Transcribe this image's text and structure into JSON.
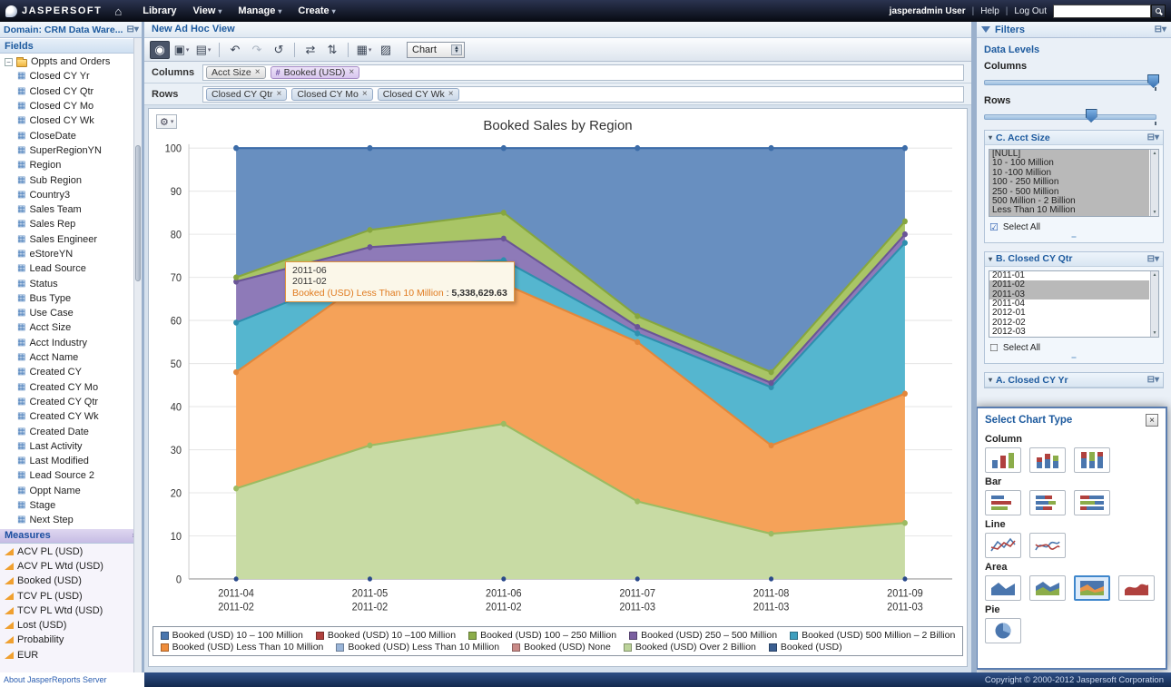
{
  "topbar": {
    "brand": "JASPERSOFT",
    "menus": [
      {
        "label": "Library",
        "caret": false
      },
      {
        "label": "View",
        "caret": true
      },
      {
        "label": "Manage",
        "caret": true
      },
      {
        "label": "Create",
        "caret": true
      }
    ],
    "user": "jasperadmin User",
    "help": "Help",
    "logout": "Log Out"
  },
  "left_panel": {
    "title": "Domain: CRM Data Ware...",
    "fields_header": "Fields",
    "root_folder": "Oppts and Orders",
    "fields": [
      "Closed CY Yr",
      "Closed CY Qtr",
      "Closed CY Mo",
      "Closed CY Wk",
      "CloseDate",
      "SuperRegionYN",
      "Region",
      "Sub Region",
      "Country3",
      "Sales Team",
      "Sales Rep",
      "Sales Engineer",
      "eStoreYN",
      "Lead Source",
      "Status",
      "Bus Type",
      "Use Case",
      "Acct Size",
      "Acct Industry",
      "Acct Name",
      "Created CY",
      "Created CY Mo",
      "Created CY Qtr",
      "Created CY Wk",
      "Created Date",
      "Last Activity",
      "Last Modified",
      "Lead Source 2",
      "Oppt Name",
      "Stage",
      "Next Step"
    ],
    "measures_header": "Measures",
    "measures": [
      "ACV PL (USD)",
      "ACV PL Wtd (USD)",
      "Booked (USD)",
      "TCV PL (USD)",
      "TCV PL Wtd (USD)",
      "Lost (USD)",
      "Probability",
      "EUR"
    ]
  },
  "main": {
    "view_title": "New Ad Hoc View",
    "columns_label": "Columns",
    "rows_label": "Rows",
    "column_pills": [
      {
        "label": "Acct Size",
        "type": "field"
      },
      {
        "label": "Booked (USD)",
        "type": "measure",
        "icon": "#"
      }
    ],
    "row_pills": [
      {
        "label": "Closed CY Qtr"
      },
      {
        "label": "Closed CY Mo"
      },
      {
        "label": "Closed CY Wk"
      }
    ]
  },
  "toolbar": {
    "items": [
      {
        "name": "display-mode-button",
        "glyph": "◉",
        "active": true
      },
      {
        "name": "save-button",
        "glyph": "▣",
        "caret": true
      },
      {
        "name": "export-button",
        "glyph": "▤",
        "caret": true
      },
      {
        "sep": true
      },
      {
        "name": "undo-button",
        "glyph": "↶"
      },
      {
        "name": "redo-button",
        "glyph": "↷",
        "disabled": true
      },
      {
        "name": "undo-all-button",
        "glyph": "↺"
      },
      {
        "sep": true
      },
      {
        "name": "switch-groups-button",
        "glyph": "⇄"
      },
      {
        "name": "sort-button",
        "glyph": "⇅"
      },
      {
        "sep": true
      },
      {
        "name": "input-controls-button",
        "glyph": "▦",
        "caret": true
      },
      {
        "name": "page-options-button",
        "glyph": "▨"
      }
    ],
    "viz_type_label": "Chart"
  },
  "chart_data": {
    "type": "area",
    "stacked": true,
    "title": "Booked Sales by Region",
    "x_labels": [
      [
        "2011-04",
        "2011-02"
      ],
      [
        "2011-05",
        "2011-02"
      ],
      [
        "2011-06",
        "2011-02"
      ],
      [
        "2011-07",
        "2011-03"
      ],
      [
        "2011-08",
        "2011-03"
      ],
      [
        "2011-09",
        "2011-03"
      ]
    ],
    "ylim": [
      0,
      100
    ],
    "y_ticks": [
      0,
      10,
      20,
      30,
      40,
      50,
      60,
      70,
      80,
      90,
      100
    ],
    "values_are_cumulative_stack_tops": true,
    "series": [
      {
        "name": "Booked (USD) Over 2 Billion",
        "color": "#c8dba4",
        "line": "#9cbb62",
        "values": [
          21,
          31,
          36,
          18,
          10.5,
          13
        ]
      },
      {
        "name": "Booked (USD) Less Than 10 Million",
        "color": "#f5a259",
        "line": "#e2873b",
        "values": [
          48,
          70,
          68.5,
          55,
          31,
          43
        ]
      },
      {
        "name": "Booked (USD) 500 Million – 2 Billion",
        "color": "#55b6cf",
        "line": "#2e8fae",
        "values": [
          59.5,
          72,
          74,
          57,
          44.5,
          78
        ]
      },
      {
        "name": "Booked (USD) 250 – 500 Million",
        "color": "#8e7ab8",
        "line": "#6a5596",
        "values": [
          69,
          77,
          79,
          58.5,
          45.5,
          80
        ]
      },
      {
        "name": "Booked (USD) 100 – 250 Million",
        "color": "#a9c566",
        "line": "#86a63f",
        "values": [
          70,
          81,
          85,
          61,
          48,
          83
        ]
      },
      {
        "name": "Booked (USD) 10 – 100 Million",
        "color": "#688fc0",
        "line": "#3c6ca8",
        "values": [
          100,
          100,
          100,
          100,
          100,
          100
        ]
      }
    ],
    "legend_position": "bottom",
    "legend": [
      {
        "label": "Booked (USD) 10 – 100 Million",
        "color": "#4a76ae"
      },
      {
        "label": "Booked (USD) 10 –100 Million",
        "color": "#b0413e"
      },
      {
        "label": "Booked (USD) 100 – 250 Million",
        "color": "#8cad4a"
      },
      {
        "label": "Booked (USD) 250 – 500 Million",
        "color": "#7a5fa0"
      },
      {
        "label": "Booked (USD) 500 Million – 2 Billion",
        "color": "#3f9fbe"
      },
      {
        "label": "Booked (USD) Less Than 10 Million",
        "color": "#ef8c3a"
      },
      {
        "label": "Booked (USD) Less Than 10 Million",
        "color": "#9ab5d8"
      },
      {
        "label": "Booked (USD) None",
        "color": "#c98a87"
      },
      {
        "label": "Booked (USD) Over 2 Billion",
        "color": "#bcd39a"
      },
      {
        "label": "Booked (USD)",
        "color": "#3b5f91"
      }
    ],
    "tooltip": {
      "line1": "2011-06",
      "line2": "2011-02",
      "series": "Booked (USD) Less Than 10 Million",
      "separator": " :  ",
      "value": "5,338,629.63",
      "point": {
        "x_index": 2,
        "value_pct": 68.5
      }
    }
  },
  "filters_panel": {
    "title": "Filters",
    "data_levels": {
      "title": "Data Levels",
      "columns_label": "Columns",
      "rows_label": "Rows",
      "columns_value_pct": 97,
      "rows_value_pct": 62
    },
    "sections": [
      {
        "title": "C. Acct Size",
        "options": [
          {
            "label": "[NULL]",
            "selected": true
          },
          {
            "label": "10 - 100 Million",
            "selected": true
          },
          {
            "label": "10 -100 Million",
            "selected": true
          },
          {
            "label": "100 - 250 Million",
            "selected": true
          },
          {
            "label": "250 - 500 Million",
            "selected": true
          },
          {
            "label": "500 Million - 2 Billion",
            "selected": true
          },
          {
            "label": "Less Than 10 Million",
            "selected": true
          }
        ],
        "select_all_label": "Select All",
        "select_all_checked": true
      },
      {
        "title": "B. Closed CY Qtr",
        "options": [
          {
            "label": "2011-01",
            "selected": false
          },
          {
            "label": "2011-02",
            "selected": true
          },
          {
            "label": "2011-03",
            "selected": true
          },
          {
            "label": "2011-04",
            "selected": false
          },
          {
            "label": "2012-01",
            "selected": false
          },
          {
            "label": "2012-02",
            "selected": false
          },
          {
            "label": "2012-03",
            "selected": false
          }
        ],
        "select_all_label": "Select All",
        "select_all_checked": false
      },
      {
        "title": "A. Closed CY Yr",
        "options": []
      }
    ]
  },
  "chart_type_dialog": {
    "title": "Select Chart Type",
    "groups": [
      {
        "label": "Column",
        "variants": [
          "column",
          "column-stacked",
          "column-percent"
        ],
        "selected": -1
      },
      {
        "label": "Bar",
        "variants": [
          "bar",
          "bar-stacked",
          "bar-percent"
        ],
        "selected": -1
      },
      {
        "label": "Line",
        "variants": [
          "line",
          "spline"
        ],
        "selected": -1
      },
      {
        "label": "Area",
        "variants": [
          "area",
          "area-stacked",
          "area-percent",
          "area-spline"
        ],
        "selected": 2
      },
      {
        "label": "Pie",
        "variants": [
          "pie"
        ],
        "selected": -1
      }
    ]
  },
  "footer": {
    "about": "About JasperReports Server",
    "copyright": "Copyright © 2000-2012 Jaspersoft Corporation"
  }
}
